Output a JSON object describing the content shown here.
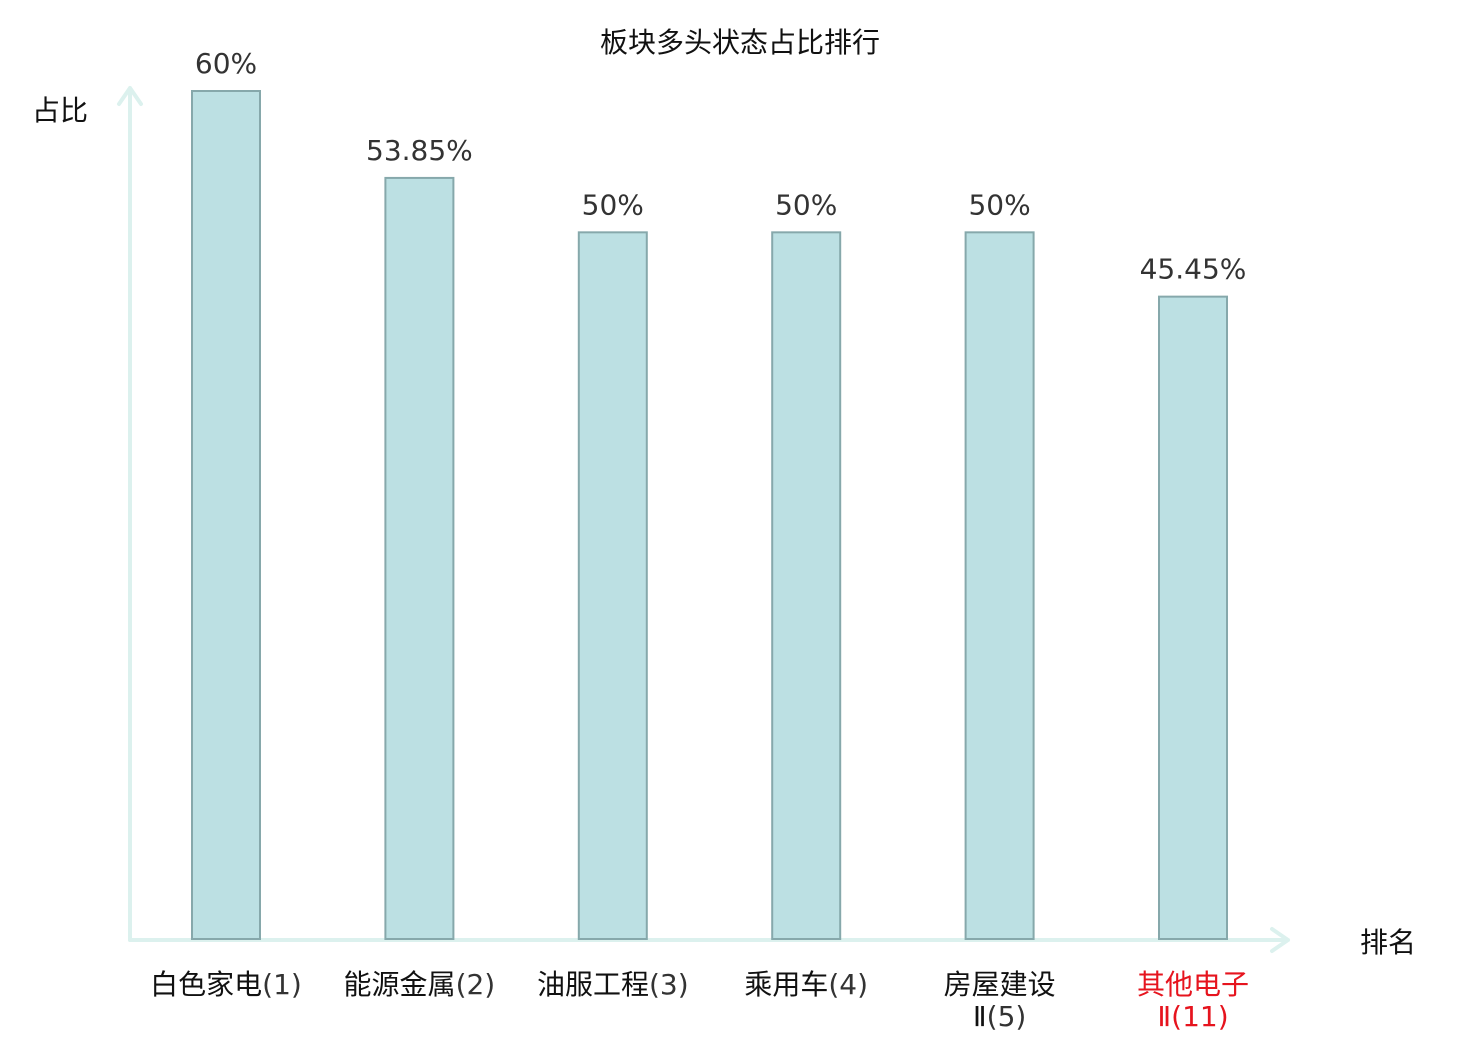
{
  "chart_data": {
    "type": "bar",
    "title": "板块多头状态占比排行",
    "ylabel": "占比",
    "xlabel": "排名",
    "categories": [
      {
        "name_lines": [
          "白色家电"
        ],
        "rank": "(1)",
        "highlight": false
      },
      {
        "name_lines": [
          "能源金属"
        ],
        "rank": "(2)",
        "highlight": false
      },
      {
        "name_lines": [
          "油服工程"
        ],
        "rank": "(3)",
        "highlight": false
      },
      {
        "name_lines": [
          "乘用车"
        ],
        "rank": "(4)",
        "highlight": false
      },
      {
        "name_lines": [
          "房屋建设",
          "Ⅱ"
        ],
        "rank": "(5)",
        "highlight": false
      },
      {
        "name_lines": [
          "其他电子",
          "Ⅱ"
        ],
        "rank": "(11)",
        "highlight": true
      }
    ],
    "values": [
      60,
      53.85,
      50,
      50,
      50,
      45.45
    ],
    "value_labels": [
      "60%",
      "53.85%",
      "50%",
      "50%",
      "50%",
      "45.45%"
    ],
    "ylim": [
      0,
      60
    ],
    "grid": false,
    "legend": "none",
    "colors": {
      "bar_fill": "#bce0e3",
      "bar_stroke": "#86a8ab",
      "axis": "#dcf1ee",
      "highlight_text": "#e6141e"
    }
  }
}
